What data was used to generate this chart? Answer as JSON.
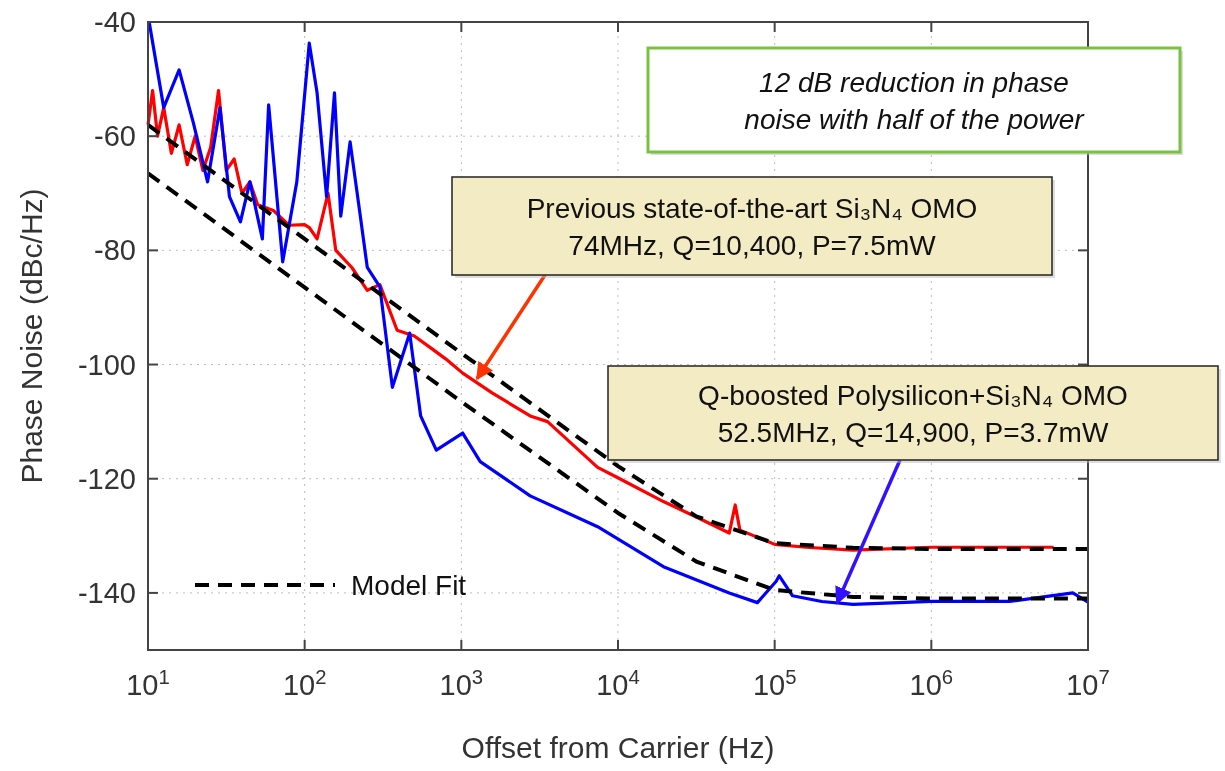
{
  "chart_data": {
    "type": "line",
    "xlabel": "Offset from Carrier (Hz)",
    "ylabel": "Phase Noise (dBc/Hz)",
    "log": "x",
    "grid": true,
    "legend": "bottom left",
    "xlim": [
      10,
      10000000
    ],
    "ylim": [
      -150,
      -40
    ],
    "xticks": [
      {
        "value": 10,
        "label": "10$^{1}$"
      },
      {
        "value": 100,
        "label": "10$^{2}$"
      },
      {
        "value": 1000,
        "label": "10$^{3}$"
      },
      {
        "value": 10000,
        "label": "10$^{4}$"
      },
      {
        "value": 100000,
        "label": "10$^{5}$"
      },
      {
        "value": 1000000,
        "label": "10$^{6}$"
      },
      {
        "value": 10000000,
        "label": "10$^{7}$"
      }
    ],
    "yticks": [
      -40,
      -60,
      -80,
      -100,
      -120,
      -140
    ],
    "series": [
      {
        "color": "#ff0000",
        "line_style": "solid",
        "x": [
          10,
          10.7,
          11.5,
          12.6,
          14.1,
          15.8,
          17.8,
          20,
          22.4,
          25.1,
          28.2,
          31.6,
          35.5,
          39.8,
          44.7,
          50.1,
          63.1,
          79.4,
          100,
          107,
          120,
          141,
          158,
          200,
          251,
          302,
          389,
          501,
          631,
          794,
          1020,
          1580,
          2750,
          3550,
          7410,
          9770,
          19500,
          31600,
          51300,
          56000,
          60000,
          85100,
          100000,
          158000,
          316000,
          1000000,
          3160000,
          6030000
        ],
        "values": [
          -58,
          -52,
          -60,
          -55,
          -63,
          -58,
          -65,
          -60,
          -66,
          -62,
          -52,
          -66,
          -64,
          -70,
          -68,
          -72,
          -73,
          -75.6,
          -75.5,
          -76,
          -78,
          -70,
          -80,
          -83,
          -87,
          -86,
          -94,
          -95,
          -97,
          -99,
          -101.5,
          -105,
          -109,
          -110,
          -118,
          -119.7,
          -124,
          -126.7,
          -129.5,
          -124.6,
          -129,
          -130.7,
          -131.5,
          -132,
          -132.5,
          -132,
          -132,
          -132
        ]
      },
      {
        "color": "#0000ff",
        "line_style": "solid",
        "x": [
          10.2,
          12.6,
          15.8,
          19.5,
          24,
          28.8,
          33.1,
          38.9,
          44.7,
          53.7,
          58.9,
          72.4,
          89.1,
          107,
          120,
          138,
          155,
          170,
          195,
          224,
          251,
          302,
          363,
          468,
          550,
          692,
          1020,
          1320,
          2750,
          7410,
          19500,
          51300,
          77600,
          102000,
          107000,
          130000,
          200000,
          316000,
          1000000,
          3160000,
          8000000,
          10000000
        ],
        "values": [
          -40.2,
          -55,
          -48.4,
          -57.7,
          -68,
          -55,
          -70.6,
          -75,
          -68,
          -78,
          -54.5,
          -82,
          -68,
          -43.7,
          -52.4,
          -70.6,
          -52.4,
          -74,
          -61,
          -73,
          -83,
          -86.4,
          -104,
          -94.5,
          -109,
          -115,
          -112,
          -117,
          -123,
          -128.4,
          -135.4,
          -140,
          -141.7,
          -138,
          -137,
          -140.5,
          -141.5,
          -142,
          -141.5,
          -141.5,
          -140,
          -141.6
        ]
      },
      {
        "name": "Model Fit",
        "color": "#000000",
        "line_style": "dashed",
        "x": [
          10,
          100,
          1000,
          10000,
          31600,
          100000,
          316000,
          1000000,
          10000000
        ],
        "values": [
          -58,
          -78,
          -98,
          -117.8,
          -126.6,
          -131.3,
          -132.1,
          -132.3,
          -132.3
        ]
      },
      {
        "color": "#000000",
        "line_style": "dashed",
        "x": [
          10,
          100,
          1000,
          10000,
          31600,
          100000,
          316000,
          1000000,
          10000000
        ],
        "values": [
          -66.5,
          -86.5,
          -106.5,
          -126,
          -134.5,
          -139.5,
          -140.7,
          -141,
          -141
        ]
      }
    ],
    "annotations": [
      {
        "text": "12 dB reduction in phase\nnoise with half of the power"
      },
      {
        "text": "Previous state-of-the-art Si₃N₄ OMO\n74MHz, Q=10,400, P=7.5mW",
        "x": 1260,
        "y": -102.5
      },
      {
        "text": "Q-boosted Polysilicon+Si₃N₄ OMO\n52.5MHz, Q=14,900, P=3.7mW",
        "x": 250000,
        "y": -141.8
      }
    ]
  }
}
